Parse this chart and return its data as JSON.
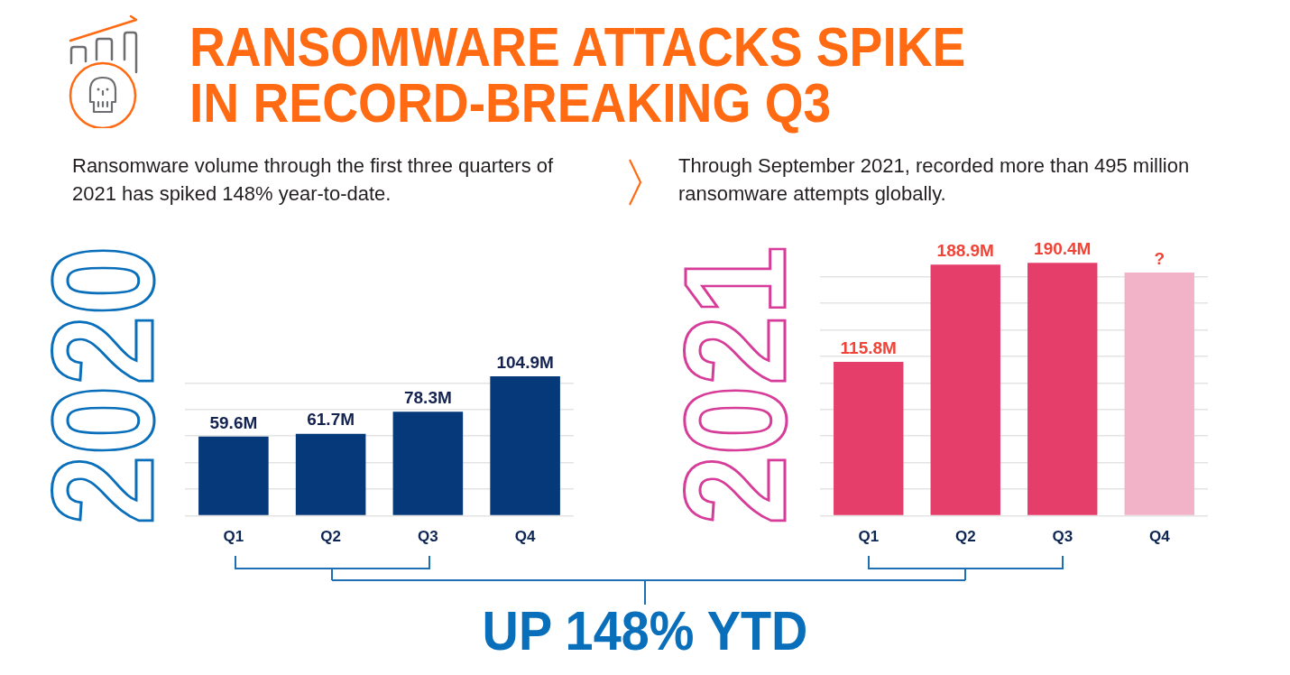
{
  "chart_data": [
    {
      "type": "bar",
      "title": "RANSOMWARE ATTACKS SPIKE IN RECORD-BREAKING Q3",
      "subtitle": "Ransomware volume through the first three quarters of 2021 has spiked 148% year-to-date.",
      "ylabel": "2020",
      "categories": [
        "Q1",
        "Q2",
        "Q3",
        "Q4"
      ],
      "values": [
        59.6,
        61.7,
        78.3,
        104.9
      ],
      "value_labels": [
        "59.6M",
        "61.7M",
        "78.3M",
        "104.9M"
      ],
      "color": "#06397a",
      "yticks": [
        {
          "value": 0,
          "label": null
        },
        {
          "value": 20,
          "label": null
        },
        {
          "value": 40,
          "label": null
        },
        {
          "value": 60,
          "label": null
        },
        {
          "value": 80,
          "label": null
        },
        {
          "value": 100,
          "label": null
        }
      ],
      "grid": "y",
      "tick_labels": "x",
      "annotations": [
        "UP 148% YTD"
      ]
    },
    {
      "type": "bar",
      "subtitle": "Through September 2021, recorded more than 495 million ransomware attempts globally.",
      "ylabel": "2021",
      "categories": [
        "Q1",
        "Q2",
        "Q3",
        "Q4"
      ],
      "values": [
        115.8,
        188.9,
        190.4,
        183
      ],
      "value_labels": [
        "115.8M",
        "188.9M",
        "190.4M",
        "?"
      ],
      "colors": [
        "#e53e6b",
        "#e53e6b",
        "#e53e6b",
        "#f2b3c8"
      ],
      "yticks": [
        {
          "value": 0,
          "label": null
        },
        {
          "value": 20,
          "label": null
        },
        {
          "value": 40,
          "label": null
        },
        {
          "value": 60,
          "label": null
        },
        {
          "value": 80,
          "label": null
        },
        {
          "value": 100,
          "label": null
        },
        {
          "value": 120,
          "label": null
        },
        {
          "value": 140,
          "label": null
        },
        {
          "value": 160,
          "label": null
        },
        {
          "value": 180,
          "label": null
        }
      ],
      "grid": "y",
      "tick_labels": "x"
    }
  ]
}
